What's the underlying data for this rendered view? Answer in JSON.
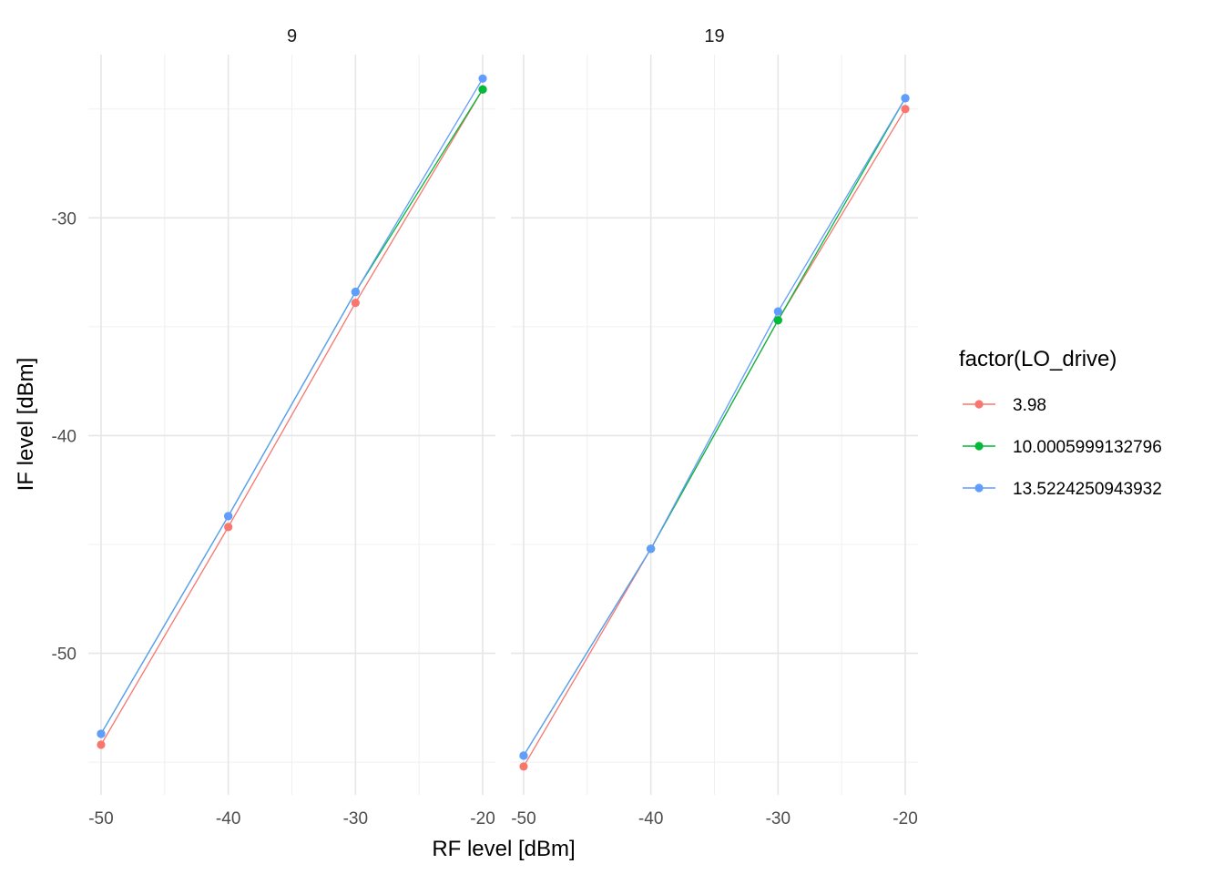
{
  "chart_data": {
    "type": "line",
    "xlabel": "RF level [dBm]",
    "ylabel": "IF level [dBm]",
    "xlim": [
      -51,
      -19
    ],
    "ylim": [
      -56.5,
      -22.5
    ],
    "x_ticks": [
      -50,
      -40,
      -30,
      -20
    ],
    "x_tick_labels": [
      "-50",
      "-40",
      "-30",
      "-20"
    ],
    "y_ticks": [
      -30,
      -40,
      -50
    ],
    "y_tick_labels": [
      "-30",
      "-40",
      "-50"
    ],
    "grid": true,
    "legend": {
      "title": "factor(LO_drive)",
      "placement": "right"
    },
    "series_styles": [
      {
        "name": "3.98",
        "color": "#F8766D"
      },
      {
        "name": "10.0005999132796",
        "color": "#00BA38"
      },
      {
        "name": "13.5224250943932",
        "color": "#619CFF"
      }
    ],
    "panels": [
      {
        "label": "9",
        "x": [
          -50,
          -40,
          -30,
          -20
        ],
        "series": [
          {
            "name": "3.98",
            "values": [
              -54.2,
              -44.2,
              -33.9,
              -24.1
            ]
          },
          {
            "name": "10.0005999132796",
            "values": [
              -53.7,
              -43.7,
              -33.4,
              -24.1
            ]
          },
          {
            "name": "13.5224250943932",
            "values": [
              -53.7,
              -43.7,
              -33.4,
              -23.6
            ]
          }
        ]
      },
      {
        "label": "19",
        "x": [
          -50,
          -40,
          -30,
          -20
        ],
        "series": [
          {
            "name": "3.98",
            "values": [
              -55.2,
              -45.2,
              -34.7,
              -25.0
            ]
          },
          {
            "name": "10.0005999132796",
            "values": [
              -54.7,
              -45.2,
              -34.7,
              -24.5
            ]
          },
          {
            "name": "13.5224250943932",
            "values": [
              -54.7,
              -45.2,
              -34.3,
              -24.5
            ]
          }
        ]
      }
    ]
  }
}
